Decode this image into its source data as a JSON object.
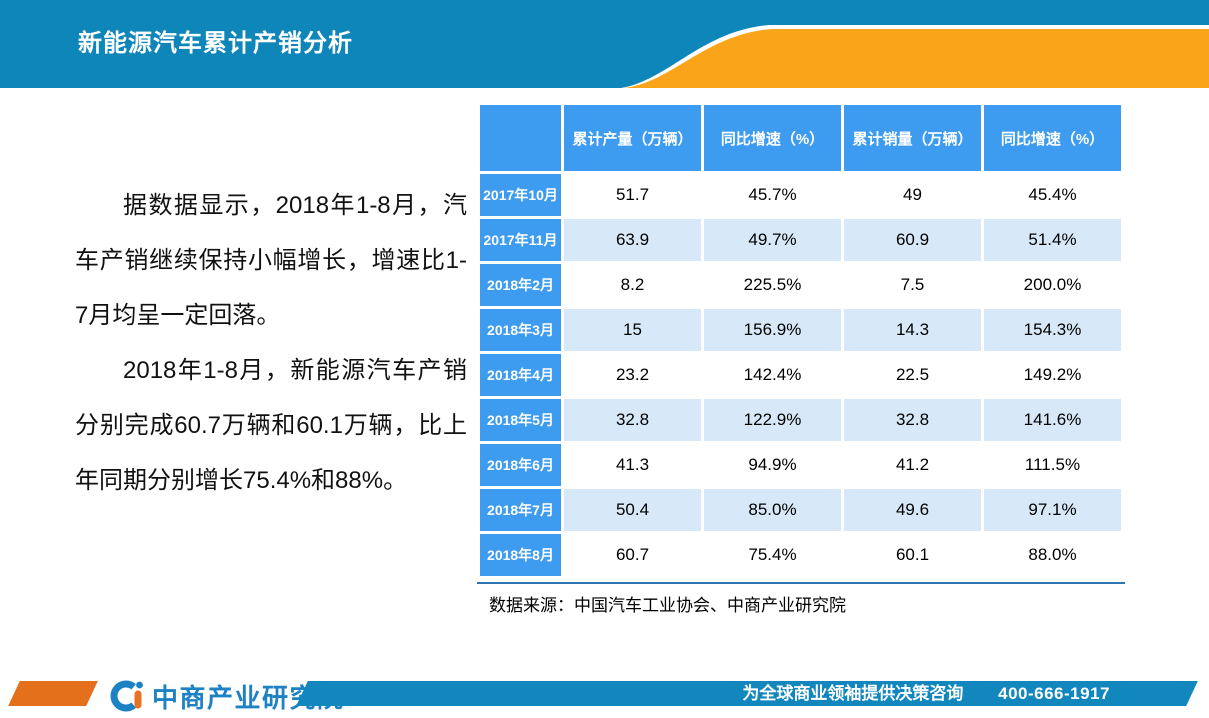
{
  "header": {
    "title": "新能源汽车累计产销分析"
  },
  "body": {
    "paragraph1": "据数据显示，2018年1-8月，汽车产销继续保持小幅增长，增速比1-7月均呈一定回落。",
    "paragraph2": "2018年1-8月，新能源汽车产销分别完成60.7万辆和60.1万辆，比上年同期分别增长75.4%和88%。"
  },
  "table": {
    "columns": [
      "",
      "累计产量（万辆）",
      "同比增速（%）",
      "累计销量（万辆）",
      "同比增速（%）"
    ],
    "rows": [
      {
        "label": "2017年10月",
        "values": [
          "51.7",
          "45.7%",
          "49",
          "45.4%"
        ]
      },
      {
        "label": "2017年11月",
        "values": [
          "63.9",
          "49.7%",
          "60.9",
          "51.4%"
        ]
      },
      {
        "label": "2018年2月",
        "values": [
          "8.2",
          "225.5%",
          "7.5",
          "200.0%"
        ]
      },
      {
        "label": "2018年3月",
        "values": [
          "15",
          "156.9%",
          "14.3",
          "154.3%"
        ]
      },
      {
        "label": "2018年4月",
        "values": [
          "23.2",
          "142.4%",
          "22.5",
          "149.2%"
        ]
      },
      {
        "label": "2018年5月",
        "values": [
          "32.8",
          "122.9%",
          "32.8",
          "141.6%"
        ]
      },
      {
        "label": "2018年6月",
        "values": [
          "41.3",
          "94.9%",
          "41.2",
          "111.5%"
        ]
      },
      {
        "label": "2018年7月",
        "values": [
          "50.4",
          "85.0%",
          "49.6",
          "97.1%"
        ]
      },
      {
        "label": "2018年8月",
        "values": [
          "60.7",
          "75.4%",
          "60.1",
          "88.0%"
        ]
      }
    ],
    "source": "数据来源：中国汽车工业协会、中商产业研究院"
  },
  "footer": {
    "logo_text": "中商产业研究院",
    "slogan": "为全球商业领袖提供决策咨询",
    "phone": "400-666-1917"
  },
  "colors": {
    "header_blue": "#0f86ba",
    "wave_orange": "#faa41a",
    "table_blue": "#3e9cf0",
    "row_light_blue": "#d7e9f8",
    "footer_band_blue": "#1187bd",
    "footer_orange": "#e4701c",
    "logo_blue": "#1d82c4",
    "divider_blue": "#2e74b5"
  }
}
